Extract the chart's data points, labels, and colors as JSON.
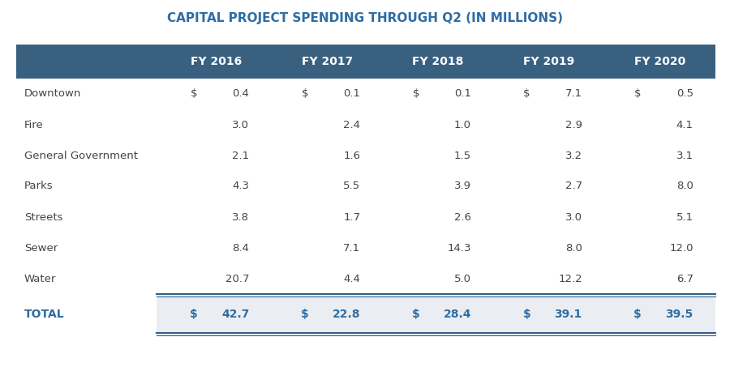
{
  "title": "CAPITAL PROJECT SPENDING THROUGH Q2 (IN MILLIONS)",
  "title_color": "#2E6DA4",
  "header_bg_color": "#3A6080",
  "header_text_color": "#FFFFFF",
  "body_text_color": "#444444",
  "total_text_color": "#2E6DA4",
  "total_bg_color": "#EAEEF2",
  "background_color": "#FFFFFF",
  "sep_color": "#2E5F8A",
  "columns": [
    "FY 2016",
    "FY 2017",
    "FY 2018",
    "FY 2019",
    "FY 2020"
  ],
  "rows": [
    {
      "label": "Downtown",
      "values": [
        0.4,
        0.1,
        0.1,
        7.1,
        0.5
      ]
    },
    {
      "label": "Fire",
      "values": [
        3.0,
        2.4,
        1.0,
        2.9,
        4.1
      ]
    },
    {
      "label": "General Government",
      "values": [
        2.1,
        1.6,
        1.5,
        3.2,
        3.1
      ]
    },
    {
      "label": "Parks",
      "values": [
        4.3,
        5.5,
        3.9,
        2.7,
        8.0
      ]
    },
    {
      "label": "Streets",
      "values": [
        3.8,
        1.7,
        2.6,
        3.0,
        5.1
      ]
    },
    {
      "label": "Sewer",
      "values": [
        8.4,
        7.1,
        14.3,
        8.0,
        12.0
      ]
    },
    {
      "label": "Water",
      "values": [
        20.7,
        4.4,
        5.0,
        12.2,
        6.7
      ]
    }
  ],
  "total": {
    "label": "TOTAL",
    "values": [
      42.7,
      22.8,
      28.4,
      39.1,
      39.5
    ]
  }
}
